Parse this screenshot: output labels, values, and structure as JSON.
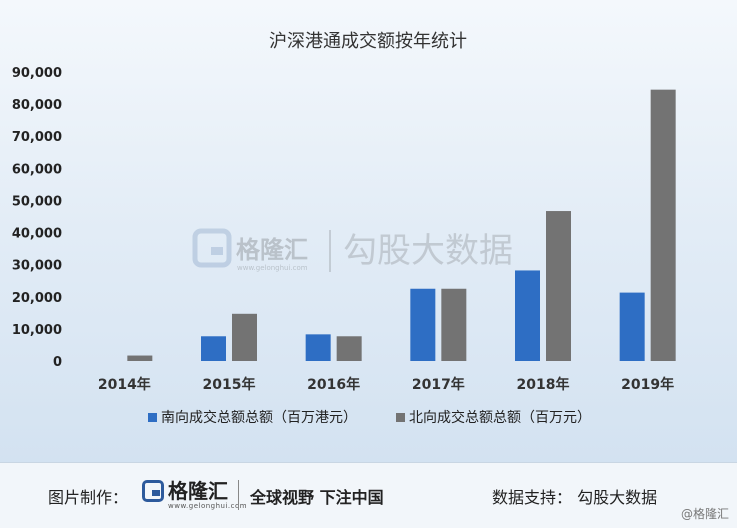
{
  "chart_data": {
    "type": "bar",
    "title": "沪深港通成交额按年统计",
    "categories": [
      "2014年",
      "2015年",
      "2016年",
      "2017年",
      "2018年",
      "2019年"
    ],
    "series": [
      {
        "name": "南向成交总额总额（百万港元）",
        "color": "#2e6ec4",
        "values": [
          0,
          7700,
          8300,
          22500,
          28200,
          21300
        ]
      },
      {
        "name": "北向成交总额总额（百万元）",
        "color": "#737373",
        "values": [
          1700,
          14700,
          7700,
          22500,
          46700,
          84500
        ]
      }
    ],
    "ylim": [
      0,
      90000
    ],
    "yticks": [
      "0",
      "10,000",
      "20,000",
      "30,000",
      "40,000",
      "50,000",
      "60,000",
      "70,000",
      "80,000",
      "90,000"
    ],
    "grid": false,
    "legend_position": "bottom"
  },
  "watermark": {
    "brand": "格隆汇",
    "brand_url": "www.gelonghui.com",
    "data_brand": "勾股大数据"
  },
  "footer": {
    "credit": "图片制作：",
    "logo": "格隆汇",
    "logo_url": "www.gelonghui.com",
    "slogan": "全球视野 下注中国",
    "support": "数据支持：  勾股大数据",
    "mark": "@格隆汇"
  }
}
